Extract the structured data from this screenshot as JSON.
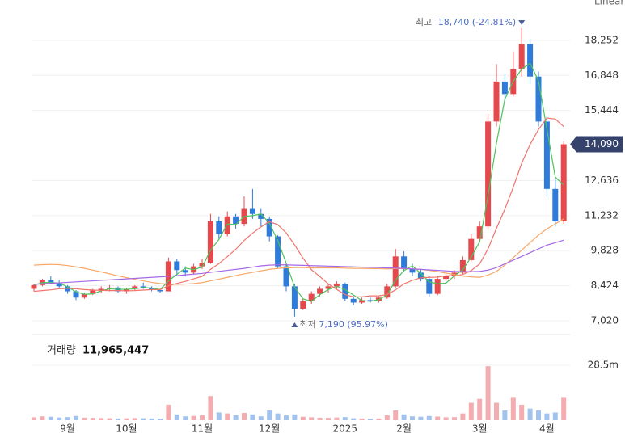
{
  "chart_data": {
    "type": "candlestick",
    "scale_label": "Linear",
    "categories": [
      null,
      null,
      null,
      null,
      "9월",
      null,
      null,
      null,
      null,
      null,
      null,
      "10월",
      null,
      null,
      null,
      null,
      null,
      null,
      null,
      null,
      "11월",
      null,
      null,
      null,
      null,
      null,
      null,
      null,
      "12월",
      null,
      null,
      null,
      null,
      null,
      null,
      null,
      null,
      "2025",
      null,
      null,
      null,
      null,
      null,
      null,
      "2월",
      null,
      null,
      null,
      null,
      null,
      null,
      null,
      null,
      "3월",
      null,
      null,
      null,
      null,
      null,
      null,
      null,
      "4월",
      null,
      null
    ],
    "open": [
      8300,
      8450,
      8650,
      8550,
      8400,
      8200,
      7950,
      8100,
      8250,
      8300,
      8350,
      8200,
      8300,
      8400,
      8350,
      8250,
      8200,
      9400,
      9050,
      8950,
      9200,
      9350,
      11000,
      10500,
      11200,
      10900,
      11500,
      11300,
      11100,
      10400,
      9200,
      8400,
      7500,
      7800,
      8100,
      8300,
      8400,
      8500,
      7900,
      7750,
      7850,
      7800,
      7950,
      8400,
      9600,
      9100,
      8950,
      8700,
      8100,
      8700,
      8800,
      8950,
      9450,
      10300,
      10800,
      15000,
      16600,
      16100,
      17100,
      18100,
      16800,
      15000,
      12300,
      11000
    ],
    "high": [
      8500,
      8700,
      8800,
      8650,
      8450,
      8250,
      8150,
      8300,
      8400,
      8450,
      8400,
      8350,
      8450,
      8550,
      8400,
      8300,
      9550,
      9500,
      9200,
      9300,
      9500,
      11300,
      11200,
      11400,
      11300,
      12000,
      12300,
      11500,
      11200,
      10450,
      9300,
      8500,
      7900,
      8200,
      8400,
      8500,
      8600,
      8550,
      8000,
      7950,
      7950,
      8000,
      8500,
      9900,
      9800,
      9300,
      9100,
      8800,
      8800,
      8950,
      9050,
      9600,
      10500,
      11000,
      15300,
      17300,
      16900,
      17800,
      18740,
      18300,
      17000,
      15200,
      12700,
      14200
    ],
    "low": [
      8200,
      8400,
      8500,
      8350,
      8100,
      7850,
      7900,
      8050,
      8150,
      8200,
      8150,
      8100,
      8250,
      8300,
      8200,
      8150,
      8200,
      8900,
      8800,
      8900,
      9100,
      9300,
      10300,
      10400,
      10700,
      10800,
      11100,
      10800,
      10200,
      9100,
      8200,
      7190,
      7450,
      7700,
      8000,
      8150,
      8300,
      7800,
      7650,
      7700,
      7750,
      7750,
      7900,
      8350,
      9000,
      8800,
      8600,
      8000,
      8050,
      8600,
      8700,
      8900,
      9400,
      10200,
      10700,
      14800,
      15800,
      16000,
      16800,
      16500,
      14800,
      12000,
      10800,
      10900
    ],
    "close": [
      8450,
      8650,
      8550,
      8400,
      8200,
      7950,
      8100,
      8250,
      8300,
      8350,
      8200,
      8300,
      8400,
      8350,
      8250,
      8200,
      9400,
      9050,
      8950,
      9200,
      9350,
      11000,
      10500,
      11200,
      10900,
      11500,
      11300,
      11100,
      10400,
      9200,
      8400,
      7500,
      7800,
      8100,
      8300,
      8400,
      8500,
      7900,
      7750,
      7850,
      7800,
      7950,
      8400,
      9600,
      9100,
      8950,
      8700,
      8100,
      8700,
      8800,
      8950,
      9450,
      10300,
      10800,
      15000,
      16600,
      16100,
      17100,
      18100,
      16800,
      15000,
      12300,
      11000,
      14090
    ],
    "volumes": [
      1500000,
      2000000,
      1800000,
      1400000,
      1600000,
      2200000,
      1300000,
      1200000,
      1100000,
      1000000,
      900000,
      1000000,
      1100000,
      1000000,
      900000,
      800000,
      8000000,
      3000000,
      2000000,
      2200000,
      2500000,
      12500000,
      4000000,
      3500000,
      2500000,
      3800000,
      3000000,
      2000000,
      5000000,
      3500000,
      2500000,
      3000000,
      1800000,
      1500000,
      1300000,
      1200000,
      1400000,
      1600000,
      1000000,
      900000,
      800000,
      900000,
      2500000,
      5000000,
      3000000,
      2000000,
      1800000,
      2200000,
      1900000,
      1500000,
      1600000,
      3500000,
      9000000,
      11000000,
      28000000,
      9000000,
      5000000,
      12000000,
      8000000,
      6000000,
      5000000,
      3500000,
      4000000,
      11965447
    ],
    "up_color": "#e5484d",
    "down_color": "#2f7bd9",
    "series": [
      {
        "color": "#4cc35a",
        "values": [
          8450,
          8550,
          8550,
          8530,
          8380,
          8180,
          8080,
          8100,
          8220,
          8300,
          8280,
          8280,
          8300,
          8350,
          8330,
          8270,
          8620,
          8880,
          9130,
          9070,
          9170,
          9850,
          10280,
          10900,
          10870,
          11200,
          11230,
          11300,
          10930,
          10230,
          9330,
          8370,
          7900,
          7800,
          8070,
          8270,
          8400,
          8270,
          8050,
          7830,
          7800,
          7870,
          8050,
          8650,
          9030,
          9220,
          8920,
          8580,
          8500,
          8530,
          8820,
          9070,
          9570,
          10180,
          12030,
          14130,
          15900,
          16600,
          17100,
          17330,
          16630,
          14700,
          12770,
          12460
        ]
      },
      {
        "color": "#f0736b",
        "values": [
          8200,
          8230,
          8260,
          8300,
          8320,
          8300,
          8270,
          8250,
          8240,
          8230,
          8230,
          8220,
          8230,
          8250,
          8270,
          8270,
          8420,
          8520,
          8600,
          8700,
          8800,
          9080,
          9310,
          9590,
          9880,
          10240,
          10530,
          10780,
          10990,
          10870,
          10540,
          10060,
          9530,
          9070,
          8790,
          8500,
          8280,
          8070,
          7980,
          7980,
          8020,
          8020,
          8070,
          8260,
          8500,
          8640,
          8740,
          8760,
          8770,
          8820,
          8830,
          8870,
          9030,
          9300,
          9900,
          10720,
          11490,
          12370,
          13330,
          14080,
          14680,
          15140,
          15100,
          14800
        ]
      },
      {
        "color": "#f7a767",
        "values": [
          9250,
          9270,
          9280,
          9270,
          9230,
          9180,
          9120,
          9050,
          8980,
          8900,
          8820,
          8750,
          8680,
          8620,
          8560,
          8510,
          8490,
          8480,
          8490,
          8510,
          8550,
          8620,
          8690,
          8760,
          8830,
          8900,
          8960,
          9020,
          9080,
          9120,
          9140,
          9150,
          9150,
          9140,
          9140,
          9140,
          9140,
          9130,
          9120,
          9120,
          9110,
          9110,
          9100,
          9110,
          9110,
          9100,
          9080,
          9040,
          8990,
          8930,
          8870,
          8810,
          8780,
          8760,
          8850,
          9000,
          9250,
          9550,
          9850,
          10150,
          10450,
          10700,
          10900,
          11100
        ]
      },
      {
        "color": "#a569e6",
        "values": [
          8480,
          8500,
          8520,
          8540,
          8560,
          8580,
          8600,
          8620,
          8640,
          8660,
          8680,
          8700,
          8720,
          8740,
          8760,
          8780,
          8800,
          8830,
          8860,
          8890,
          8920,
          8960,
          9000,
          9040,
          9080,
          9120,
          9170,
          9220,
          9250,
          9260,
          9260,
          9250,
          9240,
          9230,
          9220,
          9210,
          9200,
          9190,
          9180,
          9170,
          9160,
          9150,
          9140,
          9130,
          9120,
          9100,
          9080,
          9060,
          9040,
          9020,
          9000,
          8990,
          8990,
          9000,
          9050,
          9150,
          9300,
          9450,
          9600,
          9750,
          9900,
          10050,
          10150,
          10250
        ]
      }
    ],
    "ylim": [
      6600,
      19380
    ],
    "yticks": [
      {
        "value": 7020,
        "label": "7,020"
      },
      {
        "value": 8424,
        "label": "8,424"
      },
      {
        "value": 9828,
        "label": "9,828"
      },
      {
        "value": 11232,
        "label": "11,232"
      },
      {
        "value": 12636,
        "label": "12,636"
      },
      {
        "value": 15444,
        "label": "15,444"
      },
      {
        "value": 16848,
        "label": "16,848"
      },
      {
        "value": 18252,
        "label": "18,252"
      }
    ],
    "vlim": [
      0,
      41900000
    ],
    "vticks": [
      {
        "value": 28500000,
        "label": "28.5m"
      }
    ],
    "grid": true,
    "last_price_label": "14,090",
    "high_annotation": {
      "label": "최고",
      "value": "18,740 (-24.81%)"
    },
    "low_annotation": {
      "label": "최저",
      "value": "7,190 (95.97%)"
    },
    "volume_title": "거래량",
    "volume_label": "11,965,447"
  }
}
